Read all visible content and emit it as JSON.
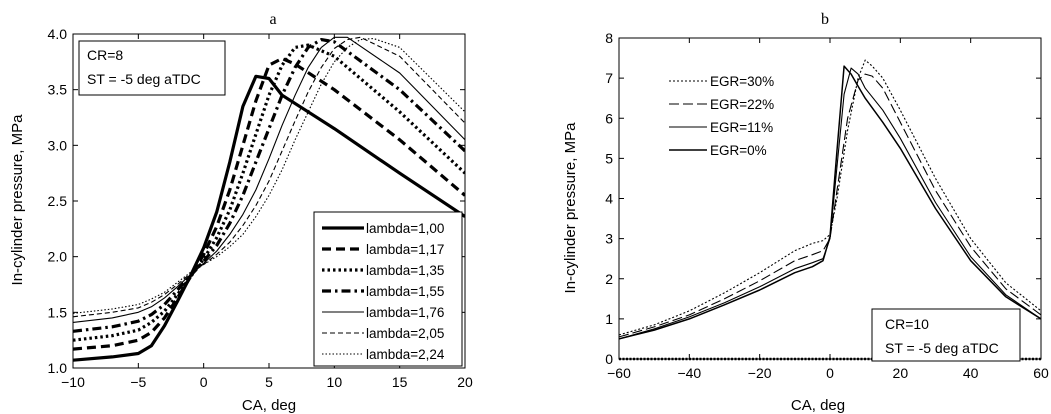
{
  "chart_data": [
    {
      "type": "line",
      "panel_label": "a",
      "xlabel": "CA, deg",
      "ylabel": "In-cylinder pressure, MPa",
      "xlim": [
        -10,
        20
      ],
      "ylim": [
        1.0,
        4.0
      ],
      "xticks": [
        -10,
        -5,
        0,
        5,
        10,
        15,
        20
      ],
      "yticks": [
        1.0,
        1.5,
        2.0,
        2.5,
        3.0,
        3.5,
        4.0
      ],
      "grid": false,
      "legend_position": "bottom-right",
      "annotation": [
        "CR=8",
        "ST = -5 deg aTDC"
      ],
      "series": [
        {
          "name": "lambda=1,00",
          "style": "solid-thick",
          "x": [
            -10,
            -7,
            -5,
            -4,
            -3,
            -2,
            -1,
            0,
            1,
            2,
            3,
            4,
            5,
            6,
            10,
            15,
            20
          ],
          "y": [
            1.07,
            1.1,
            1.13,
            1.2,
            1.38,
            1.6,
            1.83,
            2.08,
            2.4,
            2.85,
            3.35,
            3.62,
            3.6,
            3.45,
            3.15,
            2.75,
            2.36
          ]
        },
        {
          "name": "lambda=1,17",
          "style": "dash-thick",
          "x": [
            -10,
            -7,
            -5,
            -4,
            -3,
            -2,
            -1,
            0,
            1,
            2,
            3,
            4,
            5,
            6,
            7,
            10,
            15,
            20
          ],
          "y": [
            1.17,
            1.2,
            1.25,
            1.32,
            1.45,
            1.63,
            1.82,
            2.02,
            2.27,
            2.6,
            3.0,
            3.4,
            3.72,
            3.78,
            3.73,
            3.5,
            3.05,
            2.55
          ]
        },
        {
          "name": "lambda=1,35",
          "style": "dot-thick",
          "x": [
            -10,
            -7,
            -5,
            -4,
            -3,
            -2,
            -1,
            0,
            1,
            2,
            3,
            4,
            5,
            6,
            7,
            8,
            10,
            15,
            20
          ],
          "y": [
            1.25,
            1.29,
            1.34,
            1.41,
            1.51,
            1.66,
            1.82,
            1.98,
            2.17,
            2.42,
            2.75,
            3.1,
            3.45,
            3.72,
            3.88,
            3.9,
            3.8,
            3.3,
            2.75
          ]
        },
        {
          "name": "lambda=1,55",
          "style": "dashdot-thick",
          "x": [
            -10,
            -7,
            -5,
            -4,
            -3,
            -2,
            -1,
            0,
            1,
            2,
            3,
            4,
            5,
            6,
            7,
            8,
            9,
            10,
            15,
            20
          ],
          "y": [
            1.33,
            1.37,
            1.42,
            1.48,
            1.57,
            1.7,
            1.83,
            1.96,
            2.1,
            2.3,
            2.55,
            2.85,
            3.15,
            3.45,
            3.7,
            3.88,
            3.95,
            3.93,
            3.5,
            2.95
          ]
        },
        {
          "name": "lambda=1,76",
          "style": "solid-thin",
          "x": [
            -10,
            -7,
            -5,
            -4,
            -3,
            -2,
            -1,
            0,
            1,
            2,
            3,
            4,
            5,
            6,
            7,
            8,
            9,
            10,
            11,
            15,
            20
          ],
          "y": [
            1.41,
            1.45,
            1.5,
            1.55,
            1.63,
            1.73,
            1.84,
            1.94,
            2.05,
            2.2,
            2.38,
            2.6,
            2.88,
            3.18,
            3.45,
            3.7,
            3.88,
            3.97,
            3.97,
            3.65,
            3.05
          ]
        },
        {
          "name": "lambda=2,05",
          "style": "dash-thin",
          "x": [
            -10,
            -7,
            -5,
            -4,
            -3,
            -2,
            -1,
            0,
            1,
            2,
            3,
            4,
            5,
            6,
            7,
            8,
            9,
            10,
            11,
            12,
            15,
            20
          ],
          "y": [
            1.46,
            1.5,
            1.54,
            1.59,
            1.66,
            1.75,
            1.85,
            1.93,
            2.02,
            2.13,
            2.28,
            2.46,
            2.68,
            2.95,
            3.22,
            3.48,
            3.7,
            3.87,
            3.95,
            3.97,
            3.8,
            3.2
          ]
        },
        {
          "name": "lambda=2,24",
          "style": "dot-thin",
          "x": [
            -10,
            -7,
            -5,
            -4,
            -3,
            -2,
            -1,
            0,
            1,
            2,
            3,
            4,
            5,
            6,
            7,
            8,
            9,
            10,
            11,
            12,
            13,
            15,
            20
          ],
          "y": [
            1.49,
            1.53,
            1.57,
            1.62,
            1.68,
            1.77,
            1.86,
            1.93,
            2.0,
            2.09,
            2.2,
            2.36,
            2.55,
            2.78,
            3.05,
            3.3,
            3.55,
            3.75,
            3.88,
            3.95,
            3.96,
            3.88,
            3.3
          ]
        }
      ]
    },
    {
      "type": "line",
      "panel_label": "b",
      "xlabel": "CA, deg",
      "ylabel": "In-cylinder pressure, MPa",
      "xlim": [
        -60,
        60
      ],
      "ylim": [
        0,
        8
      ],
      "xticks": [
        -60,
        -40,
        -20,
        0,
        20,
        40,
        60
      ],
      "yticks": [
        0,
        1,
        2,
        3,
        4,
        5,
        6,
        7,
        8
      ],
      "grid": false,
      "legend_position": "top-left",
      "annotation": [
        "CR=10",
        "ST = -5 deg aTDC"
      ],
      "series": [
        {
          "name": "EGR=30%",
          "style": "dot",
          "x": [
            -60,
            -50,
            -40,
            -30,
            -20,
            -10,
            -5,
            -2,
            0,
            2,
            5,
            8,
            10,
            12,
            15,
            20,
            30,
            40,
            50,
            60
          ],
          "y": [
            0.6,
            0.85,
            1.2,
            1.65,
            2.15,
            2.7,
            2.88,
            2.95,
            3.1,
            4.0,
            5.7,
            7.0,
            7.45,
            7.3,
            7.0,
            6.2,
            4.5,
            3.0,
            1.9,
            1.2
          ]
        },
        {
          "name": "EGR=22%",
          "style": "dash",
          "x": [
            -60,
            -50,
            -40,
            -30,
            -20,
            -10,
            -5,
            -2,
            0,
            2,
            5,
            8,
            10,
            12,
            15,
            20,
            30,
            40,
            50,
            60
          ],
          "y": [
            0.55,
            0.8,
            1.1,
            1.5,
            1.95,
            2.45,
            2.6,
            2.7,
            3.0,
            4.2,
            6.0,
            6.95,
            7.1,
            7.05,
            6.75,
            5.9,
            4.2,
            2.8,
            1.75,
            1.1
          ]
        },
        {
          "name": "EGR=11%",
          "style": "solid-thin",
          "x": [
            -60,
            -50,
            -40,
            -30,
            -20,
            -10,
            -5,
            -2,
            0,
            2,
            4,
            6,
            8,
            10,
            15,
            20,
            30,
            40,
            50,
            60
          ],
          "y": [
            0.5,
            0.75,
            1.05,
            1.4,
            1.8,
            2.25,
            2.4,
            2.5,
            3.0,
            4.8,
            6.6,
            7.25,
            7.1,
            6.75,
            6.2,
            5.5,
            3.9,
            2.55,
            1.6,
            1.0
          ]
        },
        {
          "name": "EGR=0%",
          "style": "solid",
          "x": [
            -60,
            -50,
            -40,
            -30,
            -20,
            -10,
            -5,
            -2,
            0,
            2,
            4,
            6,
            8,
            10,
            15,
            20,
            30,
            40,
            50,
            60
          ],
          "y": [
            0.5,
            0.72,
            1.0,
            1.35,
            1.72,
            2.15,
            2.3,
            2.45,
            3.05,
            5.2,
            7.3,
            7.1,
            6.8,
            6.5,
            5.9,
            5.25,
            3.75,
            2.45,
            1.55,
            1.0
          ]
        }
      ]
    }
  ]
}
